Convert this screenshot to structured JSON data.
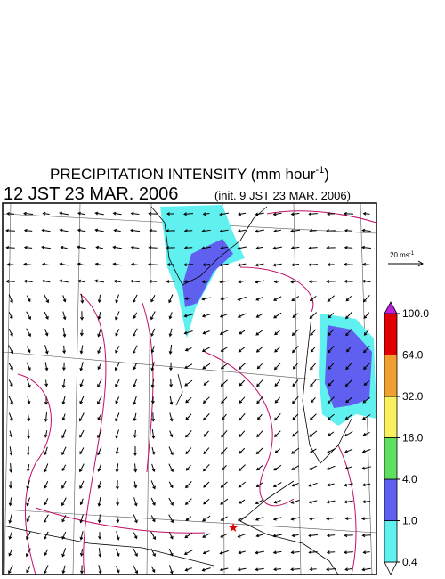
{
  "title": {
    "text": "PRECIPITATION INTENSITY (mm hour",
    "exponent": "-1",
    "close": ")"
  },
  "valid_time": "12 JST 23 MAR. 2006",
  "init_time": "(init. 9 JST 23 MAR. 2006)",
  "vector_scale": {
    "text": "20 ms",
    "exponent": "-1"
  },
  "colorbar": {
    "levels": [
      {
        "value": 0.4,
        "label": "0.4"
      },
      {
        "value": 1,
        "label": "1.0"
      },
      {
        "value": 4,
        "label": "4.0"
      },
      {
        "value": 16,
        "label": "16.0"
      },
      {
        "value": 32,
        "label": "32.0"
      },
      {
        "value": 64,
        "label": "64.0"
      },
      {
        "value": 100,
        "label": "100.0"
      }
    ],
    "colors": [
      "#ffffff",
      "#60f0f0",
      "#6060f0",
      "#60e060",
      "#f8f060",
      "#f0a030",
      "#e00000",
      "#c020e0"
    ]
  }
}
